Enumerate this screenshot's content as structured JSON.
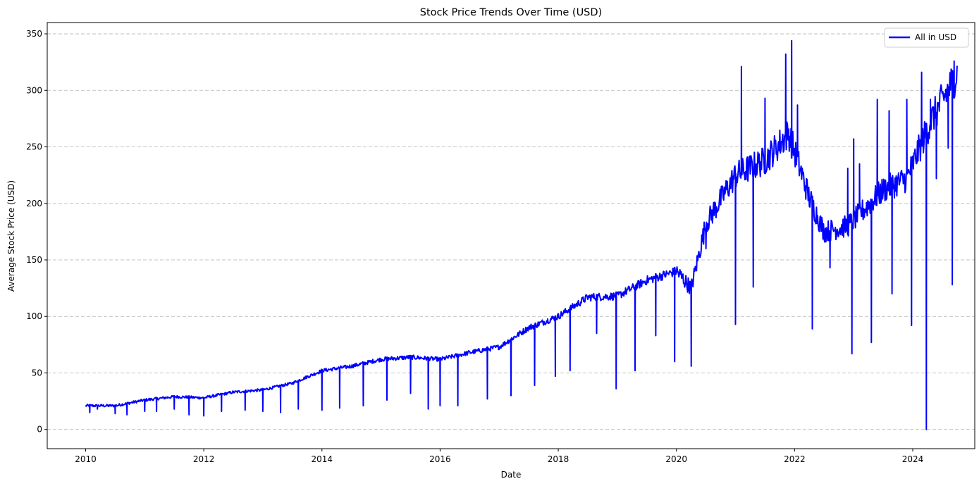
{
  "chart_data": {
    "type": "line",
    "title": "Stock Price Trends Over Time (USD)",
    "xlabel": "Date",
    "ylabel": "Average Stock Price (USD)",
    "xlim": [
      2009.35,
      2025.05
    ],
    "ylim": [
      -17,
      360
    ],
    "xticks": [
      2010,
      2012,
      2014,
      2016,
      2018,
      2020,
      2022,
      2024
    ],
    "xtick_labels": [
      "2010",
      "2012",
      "2014",
      "2016",
      "2018",
      "2020",
      "2022",
      "2024"
    ],
    "yticks": [
      0,
      50,
      100,
      150,
      200,
      250,
      300,
      350
    ],
    "ytick_labels": [
      "0",
      "50",
      "100",
      "150",
      "200",
      "250",
      "300",
      "350"
    ],
    "grid": {
      "y": true,
      "x": false,
      "style": "dashed"
    },
    "legend": {
      "position": "top-right",
      "entries": [
        "All in USD"
      ]
    },
    "series": [
      {
        "name": "All in USD",
        "color": "#0000ff",
        "trend": [
          [
            2010.0,
            21
          ],
          [
            2010.5,
            21
          ],
          [
            2011.0,
            26
          ],
          [
            2011.5,
            29
          ],
          [
            2012.0,
            28
          ],
          [
            2012.5,
            33
          ],
          [
            2013.0,
            35
          ],
          [
            2013.5,
            41
          ],
          [
            2014.0,
            52
          ],
          [
            2014.5,
            56
          ],
          [
            2015.0,
            62
          ],
          [
            2015.5,
            64
          ],
          [
            2016.0,
            62
          ],
          [
            2016.5,
            68
          ],
          [
            2017.0,
            73
          ],
          [
            2017.5,
            90
          ],
          [
            2018.0,
            100
          ],
          [
            2018.5,
            117
          ],
          [
            2019.0,
            118
          ],
          [
            2019.5,
            132
          ],
          [
            2020.0,
            140
          ],
          [
            2020.25,
            125
          ],
          [
            2020.5,
            182
          ],
          [
            2021.0,
            225
          ],
          [
            2021.5,
            238
          ],
          [
            2021.9,
            262
          ],
          [
            2022.25,
            205
          ],
          [
            2022.5,
            175
          ],
          [
            2022.9,
            180
          ],
          [
            2023.5,
            212
          ],
          [
            2023.9,
            222
          ],
          [
            2024.3,
            272
          ],
          [
            2024.75,
            315
          ]
        ],
        "dips": [
          [
            2010.07,
            15
          ],
          [
            2010.2,
            18
          ],
          [
            2010.5,
            14
          ],
          [
            2010.7,
            13
          ],
          [
            2011.0,
            16
          ],
          [
            2011.2,
            16
          ],
          [
            2011.5,
            18
          ],
          [
            2011.75,
            13
          ],
          [
            2012.0,
            12
          ],
          [
            2012.3,
            16
          ],
          [
            2012.7,
            17
          ],
          [
            2013.0,
            16
          ],
          [
            2013.3,
            15
          ],
          [
            2013.6,
            18
          ],
          [
            2014.0,
            17
          ],
          [
            2014.3,
            19
          ],
          [
            2014.7,
            21
          ],
          [
            2015.1,
            26
          ],
          [
            2015.5,
            32
          ],
          [
            2015.8,
            18
          ],
          [
            2016.0,
            21
          ],
          [
            2016.3,
            21
          ],
          [
            2016.8,
            27
          ],
          [
            2017.2,
            30
          ],
          [
            2017.6,
            39
          ],
          [
            2017.95,
            47
          ],
          [
            2018.2,
            52
          ],
          [
            2018.65,
            85
          ],
          [
            2018.98,
            36
          ],
          [
            2019.3,
            52
          ],
          [
            2019.65,
            83
          ],
          [
            2019.97,
            60
          ],
          [
            2020.25,
            56
          ],
          [
            2020.5,
            160
          ],
          [
            2021.0,
            93
          ],
          [
            2021.3,
            126
          ],
          [
            2022.3,
            89
          ],
          [
            2022.6,
            143
          ],
          [
            2022.97,
            67
          ],
          [
            2023.3,
            77
          ],
          [
            2023.65,
            120
          ],
          [
            2023.98,
            92
          ],
          [
            2024.23,
            0
          ],
          [
            2024.4,
            222
          ],
          [
            2024.6,
            249
          ],
          [
            2024.67,
            128
          ]
        ],
        "spikes": [
          [
            2021.1,
            321
          ],
          [
            2021.5,
            293
          ],
          [
            2021.85,
            332
          ],
          [
            2021.95,
            344
          ],
          [
            2022.05,
            287
          ],
          [
            2022.9,
            231
          ],
          [
            2023.0,
            257
          ],
          [
            2023.1,
            235
          ],
          [
            2023.4,
            292
          ],
          [
            2023.6,
            282
          ],
          [
            2023.9,
            292
          ],
          [
            2024.15,
            316
          ],
          [
            2024.3,
            292
          ],
          [
            2024.5,
            298
          ],
          [
            2024.7,
            326
          ]
        ]
      }
    ]
  }
}
